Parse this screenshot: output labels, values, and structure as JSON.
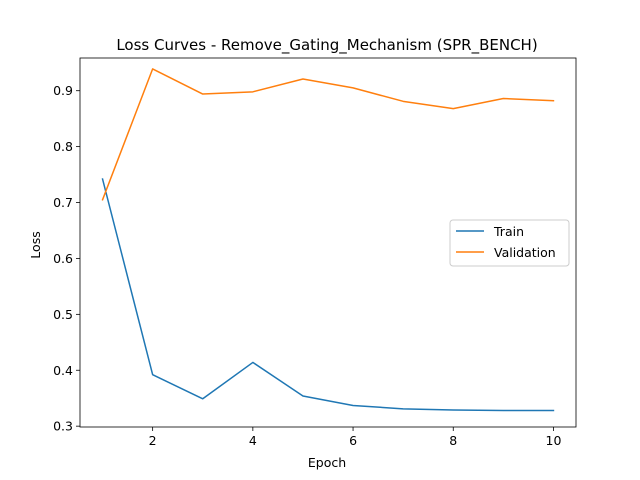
{
  "chart_data": {
    "type": "line",
    "title": "Loss Curves - Remove_Gating_Mechanism (SPR_BENCH)",
    "xlabel": "Epoch",
    "ylabel": "Loss",
    "x": [
      1,
      2,
      3,
      4,
      5,
      6,
      7,
      8,
      9,
      10
    ],
    "xlim": [
      0.55,
      10.45
    ],
    "ylim": [
      0.2985,
      0.9585
    ],
    "xticks": [
      2,
      4,
      6,
      8,
      10
    ],
    "yticks": [
      0.3,
      0.4,
      0.5,
      0.6,
      0.7,
      0.8,
      0.9
    ],
    "ytick_labels": [
      "0.3",
      "0.4",
      "0.5",
      "0.6",
      "0.7",
      "0.8",
      "0.9"
    ],
    "grid": false,
    "legend_position": "center-right",
    "series": [
      {
        "name": "Train",
        "color": "#1f77b4",
        "values": [
          0.742,
          0.392,
          0.349,
          0.414,
          0.354,
          0.337,
          0.331,
          0.329,
          0.328,
          0.328
        ]
      },
      {
        "name": "Validation",
        "color": "#ff7f0e",
        "values": [
          0.705,
          0.939,
          0.894,
          0.898,
          0.921,
          0.905,
          0.881,
          0.868,
          0.886,
          0.882
        ]
      }
    ]
  }
}
